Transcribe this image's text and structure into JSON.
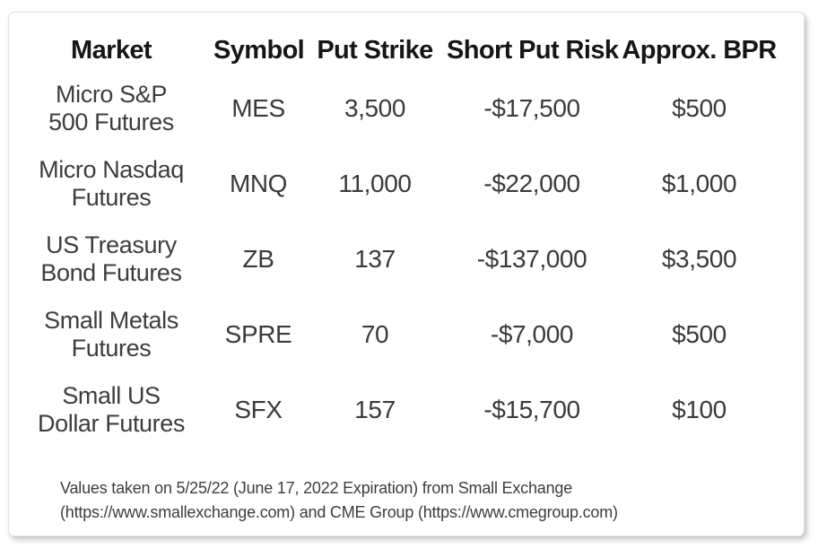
{
  "colors": {
    "background": "#ffffff",
    "card_background": "#ffffff",
    "card_border": "#e3e3e3",
    "header_text": "#161616",
    "body_text": "#3a3a3a",
    "footnote_text": "#3d3d3d"
  },
  "chart_data": {
    "type": "table",
    "columns": [
      "Market",
      "Symbol",
      "Put Strike",
      "Short Put Risk",
      "Approx. BPR"
    ],
    "rows": [
      {
        "market": "Micro S&P 500 Futures",
        "market_line1": "Micro S&P",
        "market_line2": "500 Futures",
        "symbol": "MES",
        "put_strike": "3,500",
        "short_put_risk": "-$17,500",
        "approx_bpr": "$500"
      },
      {
        "market": "Micro Nasdaq Futures",
        "market_line1": "Micro Nasdaq",
        "market_line2": "Futures",
        "symbol": "MNQ",
        "put_strike": "11,000",
        "short_put_risk": "-$22,000",
        "approx_bpr": "$1,000"
      },
      {
        "market": "US Treasury Bond Futures",
        "market_line1": "US Treasury",
        "market_line2": "Bond Futures",
        "symbol": "ZB",
        "put_strike": "137",
        "short_put_risk": "-$137,000",
        "approx_bpr": "$3,500"
      },
      {
        "market": "Small Metals Futures",
        "market_line1": "Small Metals",
        "market_line2": "Futures",
        "symbol": "SPRE",
        "put_strike": "70",
        "short_put_risk": "-$7,000",
        "approx_bpr": "$500"
      },
      {
        "market": "Small US Dollar Futures",
        "market_line1": "Small US",
        "market_line2": "Dollar Futures",
        "symbol": "SFX",
        "put_strike": "157",
        "short_put_risk": "-$15,700",
        "approx_bpr": "$100"
      }
    ],
    "footnote_line1": "Values taken on 5/25/22 (June 17, 2022 Expiration) from Small Exchange",
    "footnote_line2": "(https://www.smallexchange.com) and CME Group (https://www.cmegroup.com)",
    "layout_hints": {
      "gridlines": "off",
      "header_style": "bold",
      "value_alignment": "center"
    }
  }
}
